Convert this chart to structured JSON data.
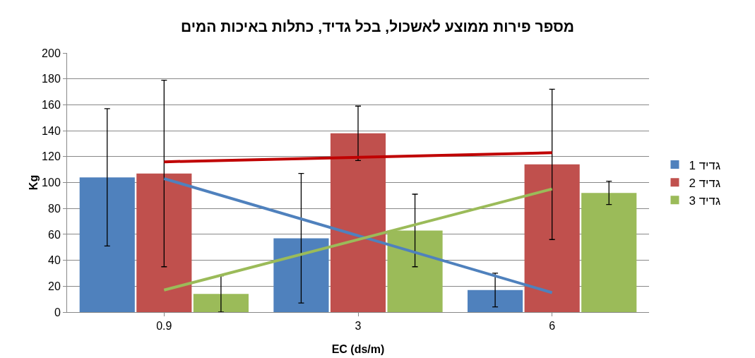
{
  "chart_data": {
    "type": "bar",
    "title": "מספר פירות ממוצע לאשכול, בכל גדיד, כתלות באיכות המים",
    "xlabel": "EC (ds/m)",
    "ylabel": "Kg",
    "categories": [
      "0.9",
      "3",
      "6"
    ],
    "series": [
      {
        "name": "גדיד 1",
        "color": "#4f81bd",
        "values": [
          104,
          57,
          17
        ],
        "errors": [
          53,
          50,
          13
        ]
      },
      {
        "name": "גדיד 2",
        "color": "#c0504d",
        "values": [
          107,
          138,
          114
        ],
        "errors": [
          72,
          21,
          58
        ]
      },
      {
        "name": "גדיד 3",
        "color": "#9bbb59",
        "values": [
          14,
          63,
          92
        ],
        "errors": [
          14,
          28,
          9
        ]
      },
      {
        "type": "line",
        "color": "#c00000",
        "x": [
          "0.9",
          "6"
        ],
        "values": [
          116,
          123
        ]
      },
      {
        "type": "line",
        "color": "#4f81bd",
        "x": [
          "0.9",
          "6"
        ],
        "values": [
          103,
          15
        ]
      },
      {
        "type": "line",
        "color": "#9bbb59",
        "x": [
          "0.9",
          "6"
        ],
        "values": [
          17,
          95
        ]
      }
    ],
    "ylim": [
      0,
      200
    ],
    "yticks": [
      0,
      20,
      40,
      60,
      80,
      100,
      120,
      140,
      160,
      180,
      200
    ],
    "grid": "y",
    "legend": "right",
    "marker": "none",
    "line_style": "solid"
  }
}
